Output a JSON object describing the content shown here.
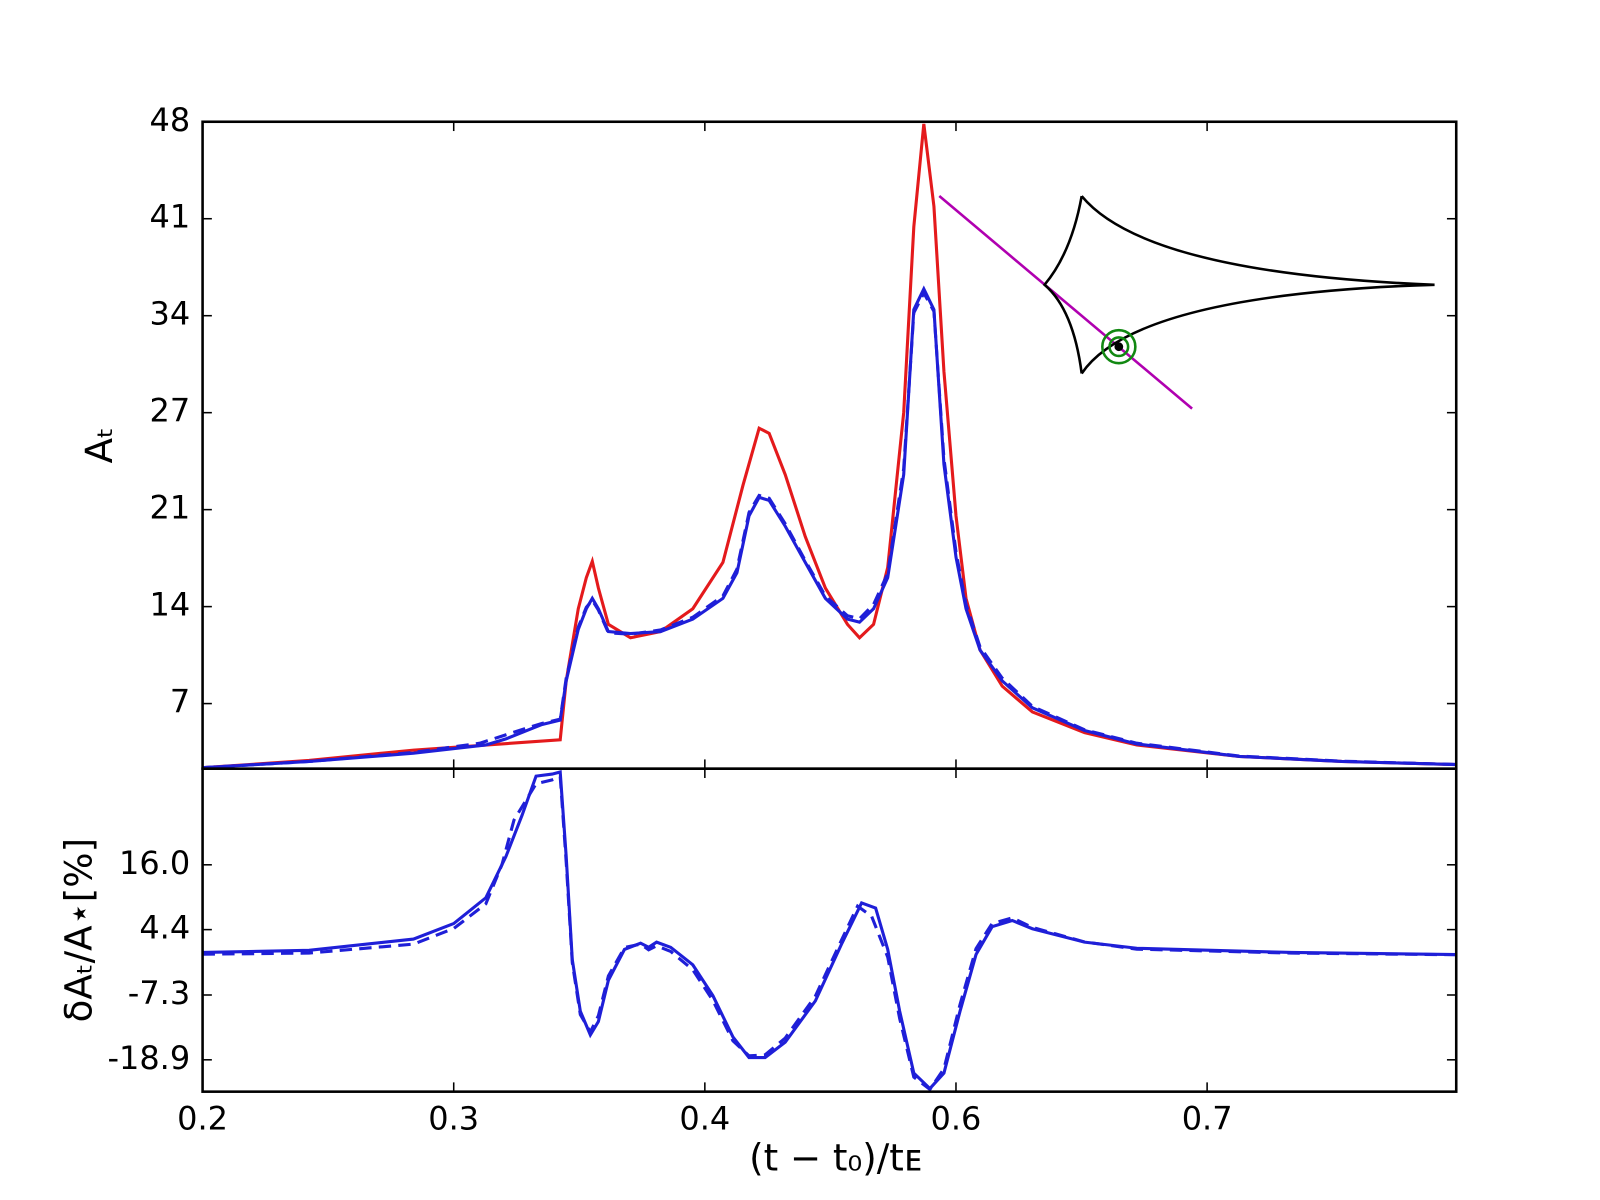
{
  "chart_data": [
    {
      "type": "line",
      "ylabel": "Aₜ",
      "xlim": [
        0.2,
        0.824
      ],
      "ylim": [
        2.3,
        48
      ],
      "yticks": [
        {
          "value": 6.9,
          "label": "7"
        },
        {
          "value": 13.75,
          "label": "14"
        },
        {
          "value": 20.6,
          "label": "21"
        },
        {
          "value": 27.45,
          "label": "27"
        },
        {
          "value": 34.3,
          "label": "34"
        },
        {
          "value": 41.15,
          "label": "41"
        },
        48
      ],
      "series": [
        {
          "color": "#e41a1c",
          "dashed": false,
          "x": [
            0.2,
            0.253,
            0.305,
            0.378,
            0.381,
            0.387,
            0.391,
            0.394,
            0.397,
            0.402,
            0.413,
            0.428,
            0.444,
            0.459,
            0.469,
            0.477,
            0.482,
            0.49,
            0.5,
            0.51,
            0.521,
            0.527,
            0.534,
            0.541,
            0.549,
            0.554,
            0.559,
            0.564,
            0.569,
            0.575,
            0.58,
            0.587,
            0.598,
            0.613,
            0.639,
            0.665,
            0.716,
            0.767,
            0.824
          ],
          "values": [
            2.37,
            2.88,
            3.61,
            4.34,
            8.5,
            13.6,
            15.79,
            16.95,
            15.06,
            12.5,
            11.55,
            11.99,
            13.6,
            16.88,
            22.34,
            26.35,
            25.99,
            23.07,
            18.7,
            15.06,
            12.5,
            11.55,
            12.5,
            16.51,
            27.45,
            40.57,
            47.85,
            42.02,
            30.36,
            20.16,
            14.33,
            10.68,
            8.13,
            6.31,
            4.85,
            3.98,
            3.17,
            2.81,
            2.59
          ]
        },
        {
          "color": "#1f1fd8",
          "dashed": false,
          "x": [
            0.2,
            0.253,
            0.305,
            0.341,
            0.351,
            0.364,
            0.369,
            0.378,
            0.381,
            0.387,
            0.391,
            0.394,
            0.397,
            0.402,
            0.413,
            0.428,
            0.444,
            0.459,
            0.466,
            0.472,
            0.477,
            0.482,
            0.49,
            0.5,
            0.51,
            0.521,
            0.527,
            0.534,
            0.541,
            0.549,
            0.554,
            0.559,
            0.564,
            0.569,
            0.575,
            0.58,
            0.587,
            0.598,
            0.613,
            0.639,
            0.665,
            0.716,
            0.767,
            0.824
          ],
          "values": [
            2.37,
            2.81,
            3.39,
            3.98,
            4.41,
            5.14,
            5.43,
            5.73,
            8.5,
            12.14,
            13.6,
            14.33,
            13.6,
            11.99,
            11.85,
            11.99,
            12.87,
            14.33,
            16.15,
            20.16,
            21.47,
            21.25,
            19.43,
            16.88,
            14.33,
            12.87,
            12.65,
            13.6,
            15.79,
            23.07,
            34.73,
            36.19,
            34.73,
            23.8,
            17.24,
            13.6,
            10.68,
            8.5,
            6.6,
            5.0,
            4.05,
            3.17,
            2.81,
            2.59
          ]
        },
        {
          "color": "#1f1fd8",
          "dashed": true,
          "x": [
            0.2,
            0.253,
            0.305,
            0.338,
            0.349,
            0.362,
            0.369,
            0.378,
            0.381,
            0.387,
            0.391,
            0.394,
            0.397,
            0.402,
            0.413,
            0.428,
            0.444,
            0.459,
            0.466,
            0.472,
            0.477,
            0.482,
            0.49,
            0.5,
            0.51,
            0.521,
            0.527,
            0.534,
            0.541,
            0.549,
            0.554,
            0.559,
            0.564,
            0.569,
            0.575,
            0.58,
            0.587,
            0.598,
            0.613,
            0.639,
            0.665,
            0.716,
            0.767,
            0.824
          ],
          "values": [
            2.37,
            2.81,
            3.45,
            4.1,
            4.6,
            5.2,
            5.5,
            5.8,
            8.7,
            12.3,
            13.7,
            14.2,
            13.5,
            11.9,
            11.8,
            12.1,
            13.0,
            14.5,
            16.4,
            20.4,
            21.6,
            21.4,
            19.6,
            17.0,
            14.5,
            13.1,
            12.9,
            13.9,
            16.1,
            23.5,
            34.5,
            35.9,
            34.6,
            24.2,
            17.6,
            13.9,
            10.9,
            8.7,
            6.7,
            5.05,
            4.1,
            3.2,
            2.83,
            2.6
          ]
        }
      ]
    },
    {
      "type": "line",
      "ylabel": "δAₜ/A⋆[%]",
      "xlabel": "(t − t₀)/tᴇ",
      "xlim": [
        0.2,
        0.824
      ],
      "ylim": [
        -24.6,
        33.2
      ],
      "xticks": [
        0.2,
        {
          "value": 0.325,
          "label": "0.3"
        },
        {
          "value": 0.45,
          "label": "0.4"
        },
        {
          "value": 0.575,
          "label": "0.6"
        },
        0.7
      ],
      "yticks": [
        -18.9,
        -7.3,
        4.4,
        {
          "value": 16,
          "label": "16.0"
        }
      ],
      "series": [
        {
          "color": "#1f1fd8",
          "dashed": false,
          "x": [
            0.2,
            0.253,
            0.305,
            0.325,
            0.341,
            0.351,
            0.359,
            0.366,
            0.374,
            0.378,
            0.381,
            0.384,
            0.388,
            0.393,
            0.397,
            0.402,
            0.41,
            0.418,
            0.422,
            0.426,
            0.433,
            0.444,
            0.454,
            0.464,
            0.472,
            0.48,
            0.49,
            0.505,
            0.518,
            0.528,
            0.535,
            0.541,
            0.547,
            0.554,
            0.562,
            0.569,
            0.577,
            0.585,
            0.593,
            0.603,
            0.613,
            0.639,
            0.665,
            0.742,
            0.824
          ],
          "values": [
            0.32,
            0.69,
            2.72,
            5.48,
            10.1,
            17.48,
            24.86,
            31.87,
            32.24,
            32.6,
            17.48,
            -0.97,
            -10.2,
            -14.44,
            -12.04,
            -4.66,
            0.87,
            1.98,
            1.24,
            2.16,
            1.24,
            -1.9,
            -7.43,
            -14.81,
            -18.5,
            -18.5,
            -15.73,
            -8.35,
            1.79,
            9.17,
            8.25,
            0.87,
            -10.2,
            -21.27,
            -24.04,
            -21.27,
            -10.2,
            -0.05,
            4.93,
            6.04,
            4.56,
            2.16,
            1.06,
            0.32,
            -0.05
          ]
        },
        {
          "color": "#1f1fd8",
          "dashed": true,
          "x": [
            0.2,
            0.253,
            0.305,
            0.325,
            0.341,
            0.349,
            0.355,
            0.366,
            0.374,
            0.378,
            0.381,
            0.384,
            0.388,
            0.393,
            0.397,
            0.402,
            0.41,
            0.418,
            0.422,
            0.426,
            0.433,
            0.444,
            0.454,
            0.464,
            0.472,
            0.48,
            0.49,
            0.505,
            0.518,
            0.526,
            0.533,
            0.541,
            0.547,
            0.554,
            0.562,
            0.569,
            0.577,
            0.585,
            0.593,
            0.603,
            0.613,
            0.639,
            0.665,
            0.742,
            0.824
          ],
          "values": [
            0.0,
            0.2,
            1.8,
            4.6,
            9.0,
            16.0,
            24.0,
            30.5,
            31.2,
            31.8,
            16.5,
            -1.5,
            -10.8,
            -13.9,
            -11.0,
            -3.9,
            1.2,
            1.8,
            0.8,
            1.5,
            0.5,
            -2.8,
            -8.3,
            -15.5,
            -18.2,
            -18.0,
            -15.0,
            -7.5,
            2.5,
            8.6,
            6.8,
            -0.5,
            -11.5,
            -22.0,
            -24.2,
            -20.5,
            -9.0,
            1.0,
            5.5,
            6.5,
            4.8,
            2.2,
            0.9,
            0.2,
            -0.1
          ]
        }
      ]
    }
  ]
}
